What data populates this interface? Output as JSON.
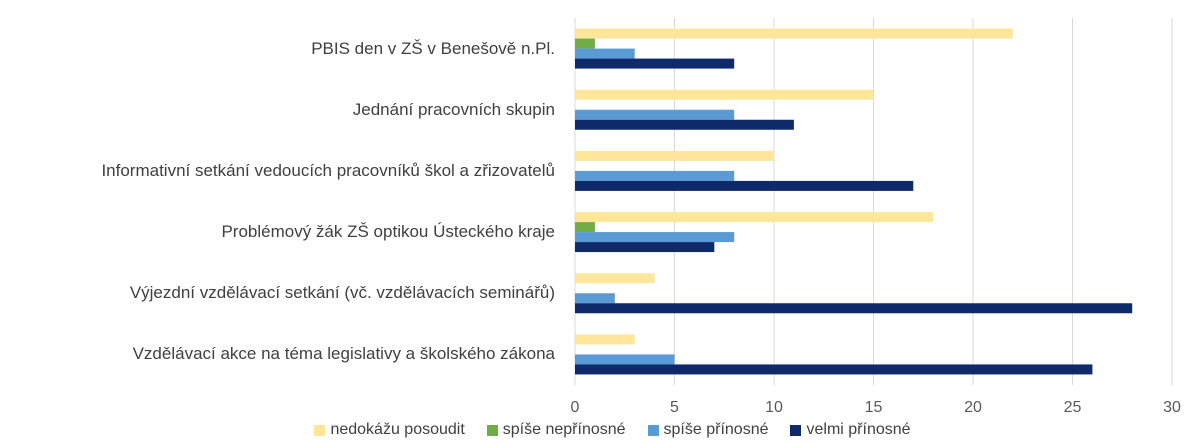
{
  "chart_data": {
    "type": "hbar",
    "categories": [
      "PBIS den v ZŠ v Benešově n.Pl.",
      "Jednání pracovních skupin",
      "Informativní setkání vedoucích pracovníků škol a zřizovatelů",
      "Problémový žák ZŠ optikou Ústeckého kraje",
      "Výjezdní vzdělávací setkání (vč. vzdělávacích seminářů)",
      "Vzdělávací akce na téma legislativy a školského zákona"
    ],
    "series": [
      {
        "name": "nedokážu posoudit",
        "color": "#ffe699",
        "values": [
          22,
          15,
          10,
          18,
          4,
          3
        ]
      },
      {
        "name": "spíše nepřínosné",
        "color": "#70ad47",
        "values": [
          1,
          0,
          0,
          1,
          0,
          0
        ]
      },
      {
        "name": "spíše přínosné",
        "color": "#5b9bd5",
        "values": [
          3,
          8,
          8,
          8,
          2,
          5
        ]
      },
      {
        "name": "velmi přínosné",
        "color": "#0e2a6b",
        "values": [
          8,
          11,
          17,
          7,
          28,
          26
        ]
      }
    ],
    "xlim": [
      0,
      30
    ],
    "xticks": [
      0,
      5,
      10,
      15,
      20,
      25,
      30
    ],
    "grid": true,
    "legend": "bottom"
  }
}
